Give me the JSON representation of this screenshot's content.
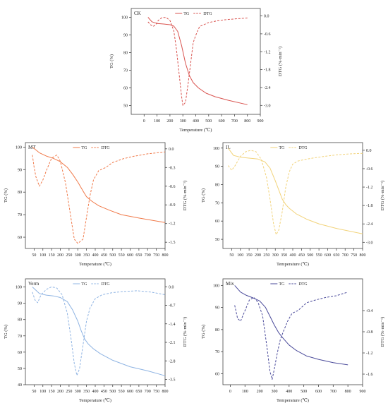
{
  "chart_data": [
    {
      "type": "line",
      "panel_label": "CK",
      "color": "#d9534f",
      "xlabel": "Temperature (℃)",
      "ylabel_left": "TG (%)",
      "ylabel_right": "DTG (%·min⁻¹)",
      "xlim": [
        -100,
        900
      ],
      "xticks": [
        0,
        100,
        200,
        300,
        400,
        500,
        600,
        700,
        800,
        900
      ],
      "ylim_left": [
        45,
        105
      ],
      "yticks_left": [
        50,
        60,
        70,
        80,
        90,
        100
      ],
      "ylim_right": [
        -3.3,
        0.25
      ],
      "yticks_right": [
        0.0,
        -0.6,
        -1.2,
        -1.8,
        -2.4,
        -3.0
      ],
      "legend": {
        "tg": "TG",
        "dtg": "DTG",
        "placement": "top-center"
      },
      "series": [
        {
          "name": "TG",
          "axis": "left",
          "style": "solid",
          "x": [
            30,
            60,
            100,
            150,
            200,
            230,
            260,
            290,
            320,
            350,
            380,
            420,
            480,
            550,
            650,
            800
          ],
          "y": [
            100,
            97.5,
            96.5,
            96.2,
            95.8,
            95,
            92,
            84,
            74,
            67,
            63,
            60,
            57,
            55,
            53,
            50.5
          ]
        },
        {
          "name": "DTG",
          "axis": "right",
          "style": "dashed",
          "x": [
            30,
            50,
            70,
            90,
            110,
            140,
            170,
            200,
            230,
            250,
            270,
            290,
            300,
            320,
            340,
            360,
            380,
            400,
            430,
            460,
            500,
            560,
            620,
            700,
            800
          ],
          "y": [
            -0.2,
            -0.3,
            -0.35,
            -0.3,
            -0.15,
            -0.05,
            -0.05,
            -0.15,
            -0.5,
            -1.1,
            -1.9,
            -2.7,
            -3.0,
            -2.9,
            -2.3,
            -1.6,
            -0.9,
            -0.65,
            -0.35,
            -0.3,
            -0.22,
            -0.17,
            -0.13,
            -0.1,
            -0.07
          ]
        }
      ]
    },
    {
      "type": "line",
      "panel_label": "MT",
      "color": "#f07a4a",
      "xlabel": "Temperature (℃)",
      "ylabel_left": "TG (%)",
      "ylabel_right": "DTG (%·min⁻¹)",
      "xlim": [
        0,
        800
      ],
      "xticks": [
        50,
        100,
        150,
        200,
        250,
        300,
        350,
        400,
        450,
        500,
        550,
        600,
        650,
        700,
        750,
        800
      ],
      "ylim_left": [
        55,
        102
      ],
      "yticks_left": [
        60,
        70,
        80,
        90,
        100
      ],
      "ylim_right": [
        -1.6,
        0.1
      ],
      "yticks_right": [
        0.0,
        -0.3,
        -0.6,
        -0.9,
        -1.2,
        -1.5
      ],
      "legend": {
        "tg": "TG",
        "dtg": "DTG",
        "placement": "top-center"
      },
      "series": [
        {
          "name": "TG",
          "axis": "left",
          "style": "solid",
          "x": [
            40,
            80,
            120,
            160,
            200,
            240,
            270,
            300,
            330,
            350,
            380,
            420,
            480,
            550,
            650,
            800
          ],
          "y": [
            100,
            97.5,
            96,
            95,
            93.5,
            91,
            88,
            84.5,
            80.5,
            78,
            76,
            74,
            72,
            70,
            68.5,
            66.5
          ]
        },
        {
          "name": "DTG",
          "axis": "right",
          "style": "dashed",
          "x": [
            40,
            50,
            60,
            80,
            100,
            120,
            150,
            180,
            200,
            230,
            260,
            280,
            300,
            330,
            350,
            370,
            390,
            420,
            460,
            500,
            560,
            620,
            700,
            800
          ],
          "y": [
            -0.1,
            -0.3,
            -0.45,
            -0.6,
            -0.5,
            -0.35,
            -0.15,
            -0.1,
            -0.2,
            -0.55,
            -1.1,
            -1.45,
            -1.52,
            -1.45,
            -1.1,
            -0.75,
            -0.5,
            -0.35,
            -0.3,
            -0.22,
            -0.16,
            -0.12,
            -0.08,
            -0.05
          ]
        }
      ]
    },
    {
      "type": "line",
      "panel_label": "IL",
      "color": "#f2d37a",
      "xlabel": "Temperature (℃)",
      "ylabel_left": "TG (%)",
      "ylabel_right": "DTG (%·min⁻¹)",
      "xlim": [
        0,
        800
      ],
      "xticks": [
        50,
        100,
        150,
        200,
        250,
        300,
        350,
        400,
        450,
        500,
        550,
        600,
        650,
        700,
        750,
        800
      ],
      "ylim_left": [
        45,
        103
      ],
      "yticks_left": [
        50,
        60,
        70,
        80,
        90,
        100
      ],
      "ylim_right": [
        -3.2,
        0.25
      ],
      "yticks_right": [
        0.0,
        -0.6,
        -1.2,
        -1.8,
        -2.4,
        -3.0
      ],
      "legend": {
        "tg": "TG",
        "dtg": "DTG",
        "placement": "top-center"
      },
      "series": [
        {
          "name": "TG",
          "axis": "left",
          "style": "solid",
          "x": [
            30,
            60,
            100,
            150,
            200,
            240,
            270,
            300,
            320,
            340,
            360,
            380,
            420,
            480,
            550,
            650,
            800
          ],
          "y": [
            100,
            96,
            95,
            94.5,
            94,
            92.5,
            89,
            82,
            77,
            72,
            69,
            67,
            64,
            61,
            58.5,
            56,
            53
          ]
        },
        {
          "name": "DTG",
          "axis": "right",
          "style": "dashed",
          "x": [
            30,
            50,
            70,
            100,
            130,
            160,
            190,
            220,
            250,
            270,
            290,
            305,
            320,
            340,
            360,
            380,
            400,
            430,
            470,
            520,
            580,
            650,
            720,
            800
          ],
          "y": [
            -0.5,
            -0.65,
            -0.5,
            -0.2,
            -0.05,
            0.0,
            -0.05,
            -0.3,
            -0.9,
            -1.6,
            -2.4,
            -2.75,
            -2.6,
            -2.0,
            -1.2,
            -0.7,
            -0.45,
            -0.35,
            -0.3,
            -0.25,
            -0.2,
            -0.15,
            -0.12,
            -0.1
          ]
        }
      ]
    },
    {
      "type": "line",
      "panel_label": "Verm",
      "color": "#8fb4e3",
      "xlabel": "Temperature (℃)",
      "ylabel_left": "TG (%)",
      "ylabel_right": "DTG (%·min⁻¹)",
      "xlim": [
        0,
        800
      ],
      "xticks": [
        50,
        100,
        150,
        200,
        250,
        300,
        350,
        400,
        450,
        500,
        550,
        600,
        650,
        700,
        750,
        800
      ],
      "ylim_left": [
        40,
        105
      ],
      "yticks_left": [
        40,
        50,
        60,
        70,
        80,
        90,
        100
      ],
      "ylim_right": [
        -3.7,
        0.3
      ],
      "yticks_right": [
        0.0,
        -0.7,
        -1.4,
        -2.1,
        -2.8,
        -3.5
      ],
      "legend": {
        "tg": "TG",
        "dtg": "DTG",
        "placement": "top-center"
      },
      "series": [
        {
          "name": "TG",
          "axis": "left",
          "style": "solid",
          "x": [
            40,
            80,
            120,
            160,
            200,
            240,
            270,
            300,
            320,
            340,
            360,
            390,
            430,
            500,
            600,
            700,
            800
          ],
          "y": [
            100,
            96,
            95,
            94.5,
            93.5,
            91,
            86,
            79,
            73,
            68,
            65,
            62,
            59,
            55,
            51,
            48.5,
            45.5
          ]
        },
        {
          "name": "DTG",
          "axis": "right",
          "style": "dashed",
          "x": [
            40,
            55,
            70,
            90,
            120,
            150,
            180,
            210,
            240,
            260,
            280,
            295,
            310,
            330,
            350,
            370,
            400,
            440,
            500,
            560,
            640,
            720,
            800
          ],
          "y": [
            -0.2,
            -0.5,
            -0.6,
            -0.3,
            -0.1,
            0.0,
            -0.05,
            -0.3,
            -1.0,
            -1.9,
            -2.9,
            -3.35,
            -3.1,
            -2.2,
            -1.3,
            -0.8,
            -0.45,
            -0.3,
            -0.22,
            -0.18,
            -0.15,
            -0.2,
            -0.3
          ]
        }
      ]
    },
    {
      "type": "line",
      "panel_label": "Mix",
      "color": "#4a4a9a",
      "xlabel": "Temperature (℃)",
      "ylabel_left": "TG (%)",
      "ylabel_right": "DTG (%·min⁻¹)",
      "xlim": [
        -50,
        900
      ],
      "xticks": [
        0,
        100,
        200,
        300,
        400,
        500,
        600,
        700,
        800,
        900
      ],
      "ylim_left": [
        55,
        103
      ],
      "yticks_left": [
        60,
        70,
        80,
        90,
        100
      ],
      "ylim_right": [
        -1.8,
        0.2
      ],
      "yticks_right": [
        -0.4,
        -0.8,
        -1.2,
        -1.6
      ],
      "legend": {
        "tg": "TG",
        "dtg": "DTG",
        "placement": "top-center"
      },
      "series": [
        {
          "name": "TG",
          "axis": "left",
          "style": "solid",
          "x": [
            30,
            70,
            110,
            150,
            200,
            240,
            270,
            300,
            330,
            360,
            400,
            450,
            520,
            600,
            700,
            800
          ],
          "y": [
            100,
            97,
            95.5,
            94.5,
            93,
            90,
            86,
            82,
            78.5,
            76,
            73,
            70.5,
            68,
            66.5,
            65,
            64
          ]
        },
        {
          "name": "DTG",
          "axis": "right",
          "style": "dashed",
          "x": [
            30,
            50,
            70,
            100,
            130,
            160,
            190,
            220,
            250,
            270,
            285,
            300,
            320,
            340,
            360,
            390,
            420,
            460,
            520,
            580,
            650,
            720,
            800
          ],
          "y": [
            -0.3,
            -0.55,
            -0.6,
            -0.4,
            -0.2,
            -0.15,
            -0.25,
            -0.5,
            -1.1,
            -1.55,
            -1.7,
            -1.5,
            -1.2,
            -0.95,
            -0.8,
            -0.6,
            -0.45,
            -0.4,
            -0.25,
            -0.2,
            -0.15,
            -0.12,
            -0.05
          ]
        }
      ]
    }
  ]
}
